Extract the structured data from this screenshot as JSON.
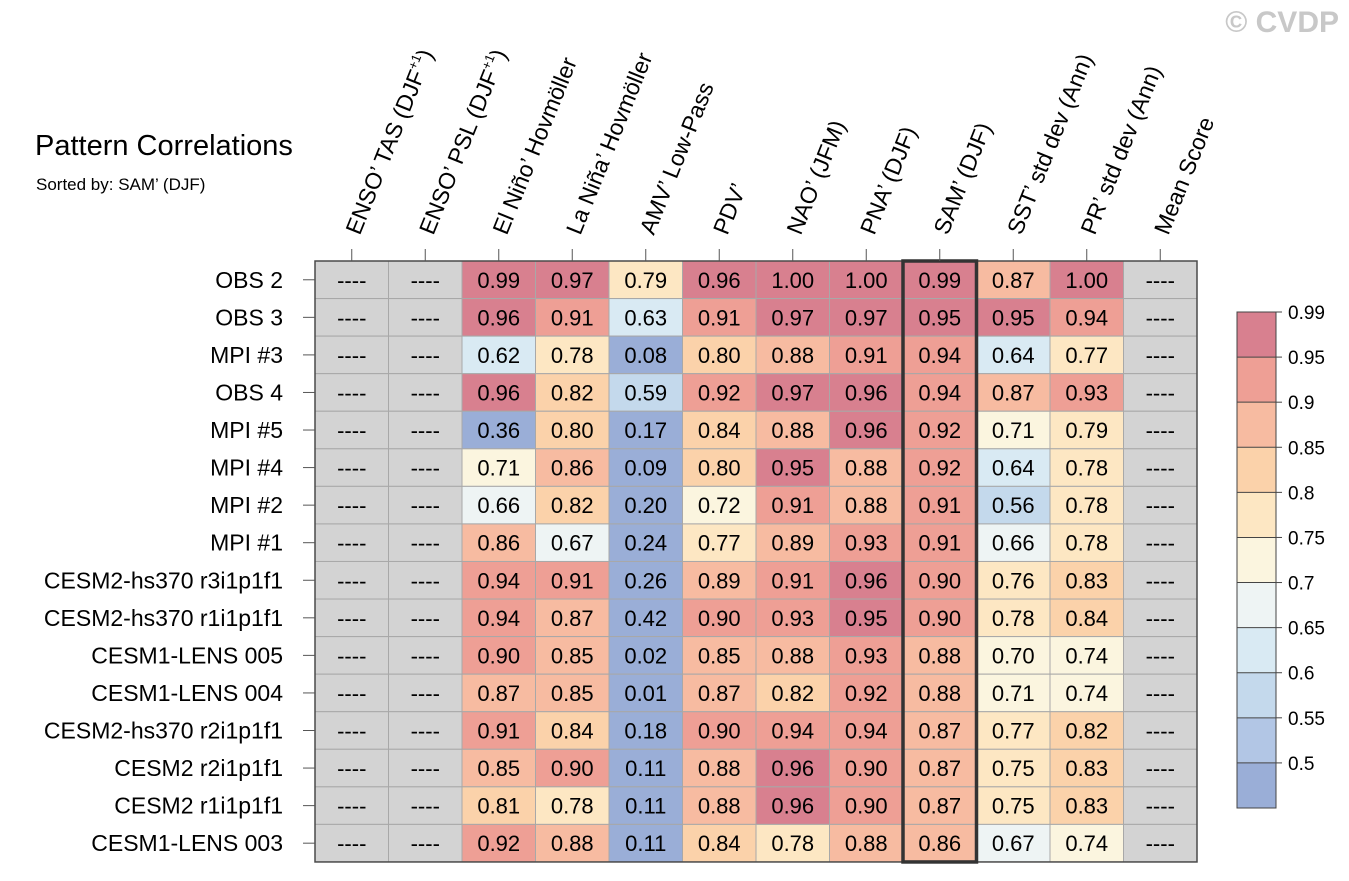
{
  "copyright": "© CVDP",
  "chart_data": {
    "type": "heatmap",
    "title": "Pattern Correlations",
    "subtitle": "Sorted by: SAM’ (DJF)",
    "columns": [
      {
        "label": "ENSO’ TAS (DJF",
        "sup": "+1",
        "close": ")"
      },
      {
        "label": "ENSO’ PSL (DJF",
        "sup": "+1",
        "close": ")"
      },
      {
        "label": "El Niño’ Hovmöller",
        "sup": "",
        "close": ""
      },
      {
        "label": "La Niña’ Hovmöller",
        "sup": "",
        "close": ""
      },
      {
        "label": "AMV’ Low-Pass",
        "sup": "",
        "close": ""
      },
      {
        "label": "PDV’",
        "sup": "",
        "close": ""
      },
      {
        "label": "NAO’ (JFM)",
        "sup": "",
        "close": ""
      },
      {
        "label": "PNA’ (DJF)",
        "sup": "",
        "close": ""
      },
      {
        "label": "SAM’ (DJF)",
        "sup": "",
        "close": ""
      },
      {
        "label": "SST’ std dev (Ann)",
        "sup": "",
        "close": ""
      },
      {
        "label": "PR’ std dev (Ann)",
        "sup": "",
        "close": ""
      },
      {
        "label": "Mean Score",
        "sup": "",
        "close": ""
      }
    ],
    "highlight_column": 8,
    "missing_label": "----",
    "rows": [
      {
        "label": "OBS 2",
        "values": [
          null,
          null,
          0.99,
          0.97,
          0.79,
          0.96,
          1.0,
          1.0,
          0.99,
          0.87,
          1.0,
          null
        ]
      },
      {
        "label": "OBS 3",
        "values": [
          null,
          null,
          0.96,
          0.91,
          0.63,
          0.91,
          0.97,
          0.97,
          0.95,
          0.95,
          0.94,
          null
        ]
      },
      {
        "label": "MPI #3",
        "values": [
          null,
          null,
          0.62,
          0.78,
          0.08,
          0.8,
          0.88,
          0.91,
          0.94,
          0.64,
          0.77,
          null
        ]
      },
      {
        "label": "OBS 4",
        "values": [
          null,
          null,
          0.96,
          0.82,
          0.59,
          0.92,
          0.97,
          0.96,
          0.94,
          0.87,
          0.93,
          null
        ]
      },
      {
        "label": "MPI #5",
        "values": [
          null,
          null,
          0.36,
          0.8,
          0.17,
          0.84,
          0.88,
          0.96,
          0.92,
          0.71,
          0.79,
          null
        ]
      },
      {
        "label": "MPI #4",
        "values": [
          null,
          null,
          0.71,
          0.86,
          0.09,
          0.8,
          0.95,
          0.88,
          0.92,
          0.64,
          0.78,
          null
        ]
      },
      {
        "label": "MPI #2",
        "values": [
          null,
          null,
          0.66,
          0.82,
          0.2,
          0.72,
          0.91,
          0.88,
          0.91,
          0.56,
          0.78,
          null
        ]
      },
      {
        "label": "MPI #1",
        "values": [
          null,
          null,
          0.86,
          0.67,
          0.24,
          0.77,
          0.89,
          0.93,
          0.91,
          0.66,
          0.78,
          null
        ]
      },
      {
        "label": "CESM2-hs370 r3i1p1f1",
        "values": [
          null,
          null,
          0.94,
          0.91,
          0.26,
          0.89,
          0.91,
          0.96,
          0.9,
          0.76,
          0.83,
          null
        ]
      },
      {
        "label": "CESM2-hs370 r1i1p1f1",
        "values": [
          null,
          null,
          0.94,
          0.87,
          0.42,
          0.9,
          0.93,
          0.95,
          0.9,
          0.78,
          0.84,
          null
        ]
      },
      {
        "label": "CESM1-LENS 005",
        "values": [
          null,
          null,
          0.9,
          0.85,
          0.02,
          0.85,
          0.88,
          0.93,
          0.88,
          0.7,
          0.74,
          null
        ]
      },
      {
        "label": "CESM1-LENS 004",
        "values": [
          null,
          null,
          0.87,
          0.85,
          0.01,
          0.87,
          0.82,
          0.92,
          0.88,
          0.71,
          0.74,
          null
        ]
      },
      {
        "label": "CESM2-hs370 r2i1p1f1",
        "values": [
          null,
          null,
          0.91,
          0.84,
          0.18,
          0.9,
          0.94,
          0.94,
          0.87,
          0.77,
          0.82,
          null
        ]
      },
      {
        "label": "CESM2 r2i1p1f1",
        "values": [
          null,
          null,
          0.85,
          0.9,
          0.11,
          0.88,
          0.96,
          0.9,
          0.87,
          0.75,
          0.83,
          null
        ]
      },
      {
        "label": "CESM2 r1i1p1f1",
        "values": [
          null,
          null,
          0.81,
          0.78,
          0.11,
          0.88,
          0.96,
          0.9,
          0.87,
          0.75,
          0.83,
          null
        ]
      },
      {
        "label": "CESM1-LENS 003",
        "values": [
          null,
          null,
          0.92,
          0.88,
          0.11,
          0.84,
          0.78,
          0.88,
          0.86,
          0.67,
          0.74,
          null
        ]
      }
    ],
    "colorbar": {
      "thresholds": [
        0.5,
        0.55,
        0.6,
        0.65,
        0.7,
        0.75,
        0.8,
        0.85,
        0.9,
        0.95,
        0.99
      ],
      "tick_labels": [
        "0.5",
        "0.55",
        "0.6",
        "0.65",
        "0.7",
        "0.75",
        "0.8",
        "0.85",
        "0.9",
        "0.95",
        "0.99"
      ],
      "colors": [
        "#9aaed7",
        "#b2c6e5",
        "#c4d9ec",
        "#d9eaf3",
        "#eef4f4",
        "#fbf5df",
        "#fde7c3",
        "#fbd2aa",
        "#f7bba1",
        "#ee9f95",
        "#d8808f",
        "#d8808f"
      ],
      "missing_color": "#d3d3d3"
    }
  }
}
